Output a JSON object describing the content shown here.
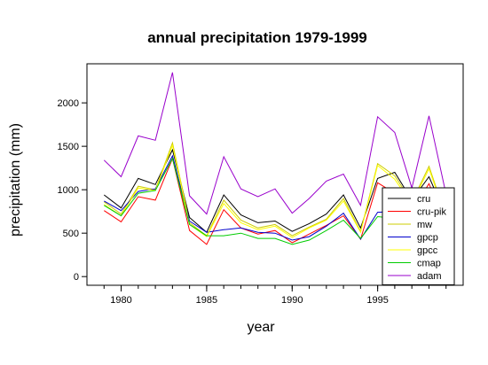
{
  "chart_data": {
    "type": "line",
    "title": "annual precipitation 1979-1999",
    "xlabel": "year",
    "ylabel": "precipitation (mm)",
    "xlim": [
      1978,
      2000
    ],
    "ylim": [
      -100,
      2450
    ],
    "xticks": [
      1980,
      1985,
      1990,
      1995
    ],
    "yticks": [
      0,
      500,
      1000,
      1500,
      2000
    ],
    "grid": false,
    "legend_position": "bottom-right",
    "x": [
      1979,
      1980,
      1981,
      1982,
      1983,
      1984,
      1985,
      1986,
      1987,
      1988,
      1989,
      1990,
      1991,
      1992,
      1993,
      1994,
      1995,
      1996,
      1997,
      1998,
      1999
    ],
    "series": [
      {
        "name": "cru",
        "color": "#000000",
        "values": [
          940,
          790,
          1130,
          1060,
          1460,
          680,
          510,
          940,
          710,
          620,
          640,
          520,
          610,
          720,
          940,
          560,
          1130,
          1200,
          880,
          1150,
          700
        ]
      },
      {
        "name": "cru-pik",
        "color": "#ff0000",
        "values": [
          760,
          630,
          920,
          880,
          1360,
          530,
          370,
          770,
          560,
          490,
          530,
          390,
          490,
          590,
          700,
          430,
          1080,
          960,
          760,
          1070,
          600
        ]
      },
      {
        "name": "mw",
        "color": "#cccc00",
        "values": [
          860,
          720,
          1040,
          1000,
          1540,
          620,
          470,
          880,
          650,
          560,
          600,
          470,
          570,
          660,
          900,
          520,
          1300,
          1160,
          860,
          1270,
          690
        ]
      },
      {
        "name": "gpcp",
        "color": "#0000cc",
        "values": [
          870,
          760,
          980,
          1010,
          1390,
          640,
          510,
          540,
          560,
          510,
          500,
          420,
          460,
          580,
          730,
          430,
          740,
          750,
          690,
          990,
          580
        ]
      },
      {
        "name": "gpcc",
        "color": "#ffff00",
        "values": [
          830,
          700,
          1020,
          990,
          1510,
          600,
          460,
          840,
          620,
          540,
          580,
          450,
          560,
          650,
          870,
          510,
          1280,
          1120,
          840,
          1240,
          680
        ]
      },
      {
        "name": "cmap",
        "color": "#00cc00",
        "values": [
          820,
          700,
          960,
          990,
          1360,
          600,
          470,
          470,
          500,
          440,
          440,
          370,
          420,
          530,
          650,
          440,
          690,
          670,
          640,
          920,
          560
        ]
      },
      {
        "name": "adam",
        "color": "#9900cc",
        "values": [
          1340,
          1150,
          1620,
          1570,
          2350,
          930,
          720,
          1380,
          1010,
          920,
          1010,
          730,
          900,
          1100,
          1180,
          820,
          1840,
          1660,
          1020,
          1850,
          950
        ]
      }
    ]
  }
}
